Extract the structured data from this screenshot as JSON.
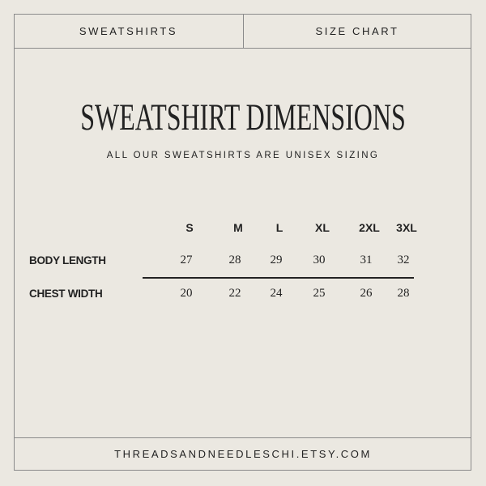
{
  "header": {
    "left_tab": "SWEATSHIRTS",
    "right_tab": "SIZE CHART"
  },
  "title": "SWEATSHIRT DIMENSIONS",
  "subtitle": "ALL OUR SWEATSHIRTS ARE UNISEX SIZING",
  "table": {
    "sizes": [
      "S",
      "M",
      "L",
      "XL",
      "2XL",
      "3XL"
    ],
    "rows": [
      {
        "label": "BODY LENGTH",
        "values": [
          "27",
          "28",
          "29",
          "30",
          "31",
          "32"
        ]
      },
      {
        "label": "CHEST WIDTH",
        "values": [
          "20",
          "22",
          "24",
          "25",
          "26",
          "28"
        ]
      }
    ]
  },
  "footer": "THREADSANDNEEDLESCHI.ETSY.COM"
}
